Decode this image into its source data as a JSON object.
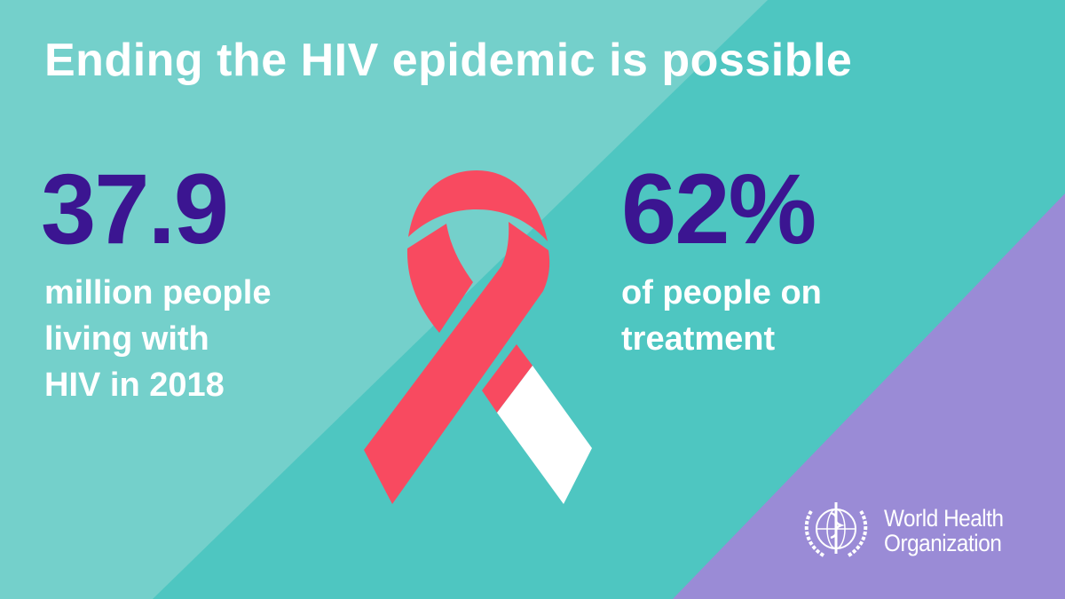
{
  "colors": {
    "background_dark_teal": "#4ec6c1",
    "background_light_teal": "#74d0cb",
    "corner_purple": "#9a8bd6",
    "stat_number": "#3b1591",
    "ribbon_red": "#f84a60",
    "ribbon_white": "#ffffff"
  },
  "title": "Ending the HIV epidemic is possible",
  "stat_left": {
    "value": "37.9",
    "lines": [
      "million people",
      "living with",
      "HIV in 2018"
    ]
  },
  "stat_right": {
    "value": "62%",
    "lines": [
      "of people on",
      "treatment"
    ]
  },
  "ribbon_icon": "hiv-awareness-ribbon",
  "logo": {
    "icon": "who-emblem",
    "lines": [
      "World Health",
      "Organization"
    ]
  }
}
